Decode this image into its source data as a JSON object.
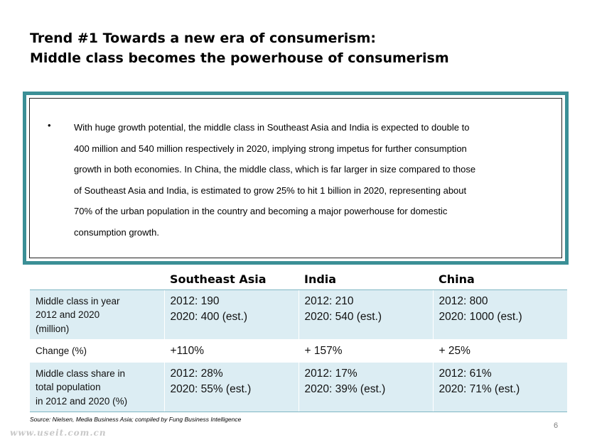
{
  "title": {
    "line1": "Trend #1 Towards a new era of consumerism:",
    "line2": "Middle class becomes the powerhouse of consumerism"
  },
  "callout": {
    "bullet": "•",
    "text": "With huge growth potential, the middle class in Southeast Asia and India is expected to double to\n400 million and 540 million respectively in 2020, implying strong impetus for further consumption\ngrowth in both economies. In China, the middle class, which is far larger in size compared to those\nof Southeast Asia and India, is estimated to grow 25% to hit 1 billion in 2020, representing about\n70% of the urban population in the country and  becoming a major powerhouse for domestic\nconsumption growth."
  },
  "table": {
    "headers": [
      "",
      "Southeast Asia",
      "India",
      "China"
    ],
    "rows": [
      {
        "label": [
          "Middle class in year",
          "2012 and 2020",
          "(million)"
        ],
        "cells": [
          [
            "2012: 190",
            "2020: 400 (est.)"
          ],
          [
            "2012: 210",
            "2020: 540  (est.)"
          ],
          [
            "2012: 800",
            "2020: 1000  (est.)"
          ]
        ]
      },
      {
        "label": [
          "Change (%)"
        ],
        "cells": [
          [
            "+110%"
          ],
          [
            "+ 157%"
          ],
          [
            "+ 25%"
          ]
        ]
      },
      {
        "label": [
          "Middle class share in",
          "total population",
          "in 2012 and 2020 (%)"
        ],
        "cells": [
          [
            "2012: 28%",
            "2020: 55% (est.)"
          ],
          [
            "2012: 17%",
            "2020: 39%  (est.)"
          ],
          [
            "2012: 61%",
            "2020: 71%  (est.)"
          ]
        ]
      }
    ]
  },
  "source": "Source: Nielsen, Media Business Asia; compiled by Fung Business Intelligence",
  "page_number": "6",
  "watermark": "www.useit.com.cn",
  "colors": {
    "frame": "#3b8f96",
    "row_shade": "#dcedf3",
    "rule": "#7fb6c4"
  }
}
